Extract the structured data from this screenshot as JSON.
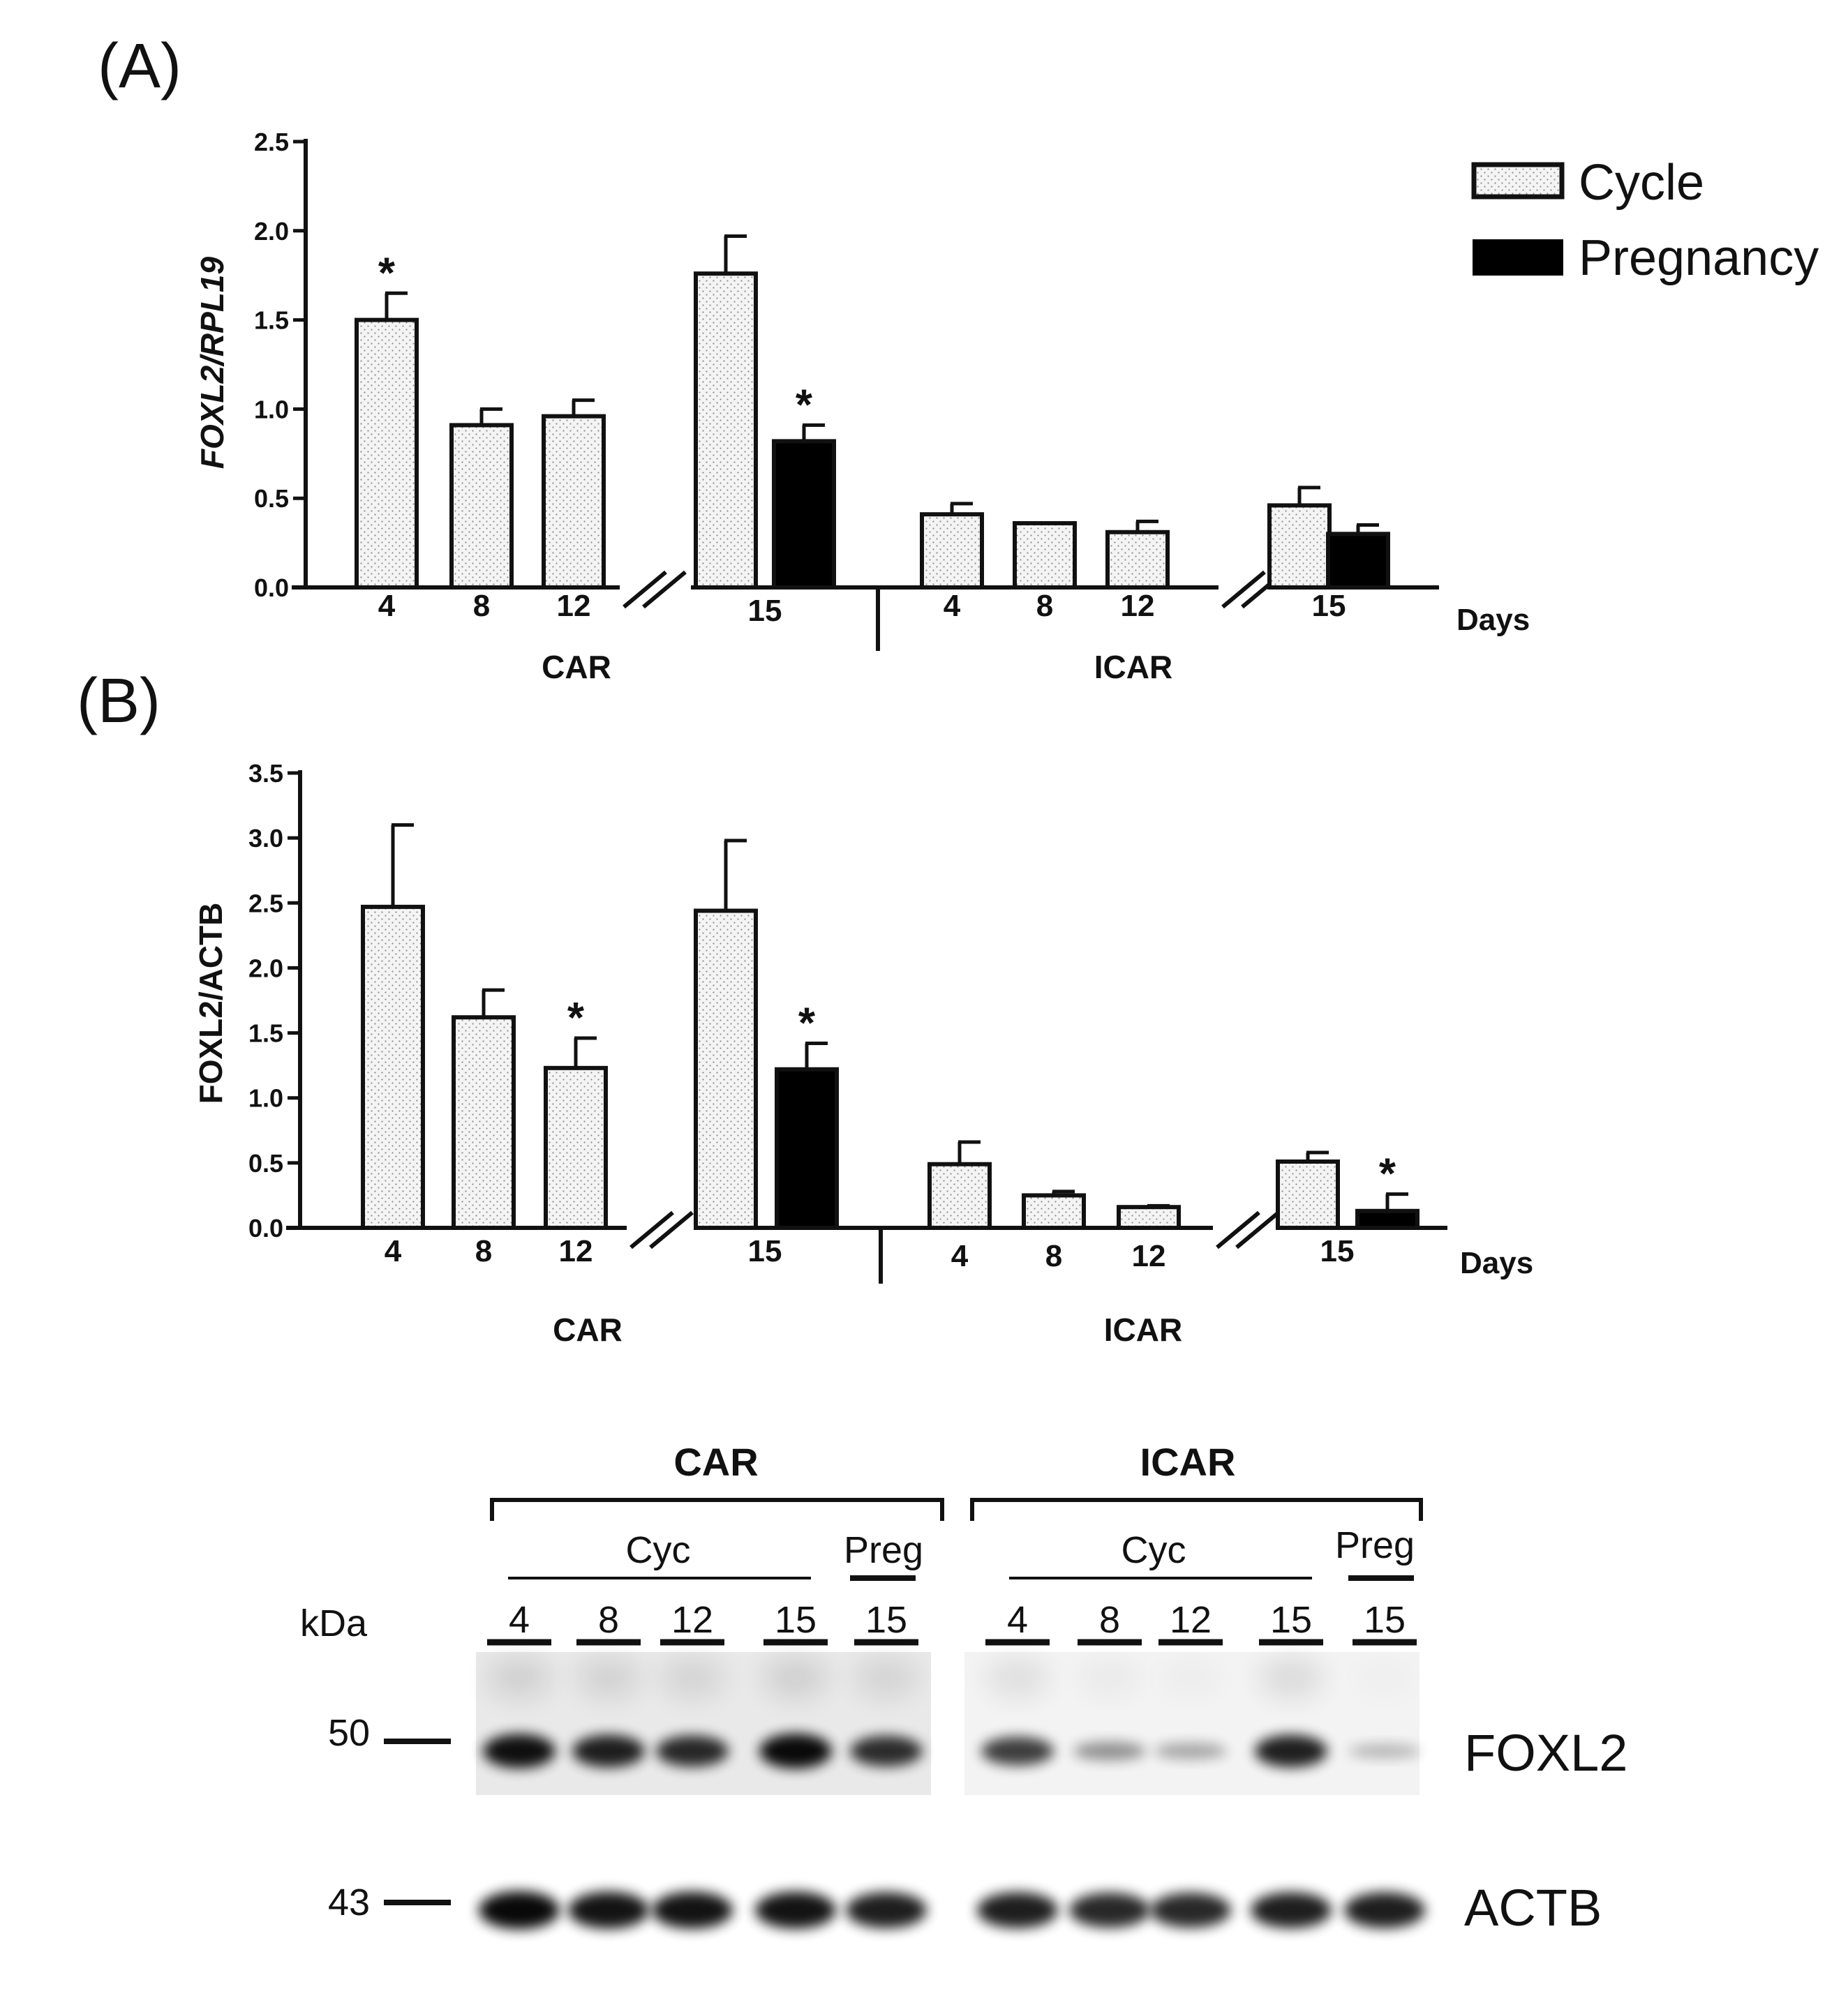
{
  "chart_data": [
    {
      "type": "bar",
      "panel_label": "(A)",
      "ylabel": "FOXL2/RPL19",
      "ylim": [
        0,
        2.5
      ],
      "yticks": [
        "0.0",
        "0.5",
        "1.0",
        "1.5",
        "2.0",
        "2.5"
      ],
      "x_unit_label": "Days",
      "groups": [
        "CAR",
        "ICAR"
      ],
      "categories": [
        "4",
        "8",
        "12",
        "15",
        "4",
        "8",
        "12",
        "15"
      ],
      "series": [
        {
          "name": "Cycle",
          "values": [
            1.5,
            0.91,
            0.96,
            1.76,
            0.41,
            0.36,
            0.31,
            0.46
          ],
          "errors": [
            0.15,
            0.09,
            0.09,
            0.21,
            0.06,
            0.0,
            0.06,
            0.1
          ],
          "significant": [
            true,
            false,
            false,
            false,
            false,
            false,
            false,
            false
          ]
        },
        {
          "name": "Pregnancy",
          "values": [
            null,
            null,
            null,
            0.82,
            null,
            null,
            null,
            0.3
          ],
          "errors": [
            null,
            null,
            null,
            0.09,
            null,
            null,
            null,
            0.05
          ],
          "significant": [
            false,
            false,
            false,
            true,
            false,
            false,
            false,
            false
          ]
        }
      ],
      "significance_marker": "*",
      "legend": {
        "position": "top-right",
        "items": [
          "Cycle",
          "Pregnancy"
        ]
      }
    },
    {
      "type": "bar",
      "panel_label": "(B)",
      "ylabel": "FOXL2/ACTB",
      "ylim": [
        0,
        3.5
      ],
      "yticks": [
        "0.0",
        "0.5",
        "1.0",
        "1.5",
        "2.0",
        "2.5",
        "3.0",
        "3.5"
      ],
      "x_unit_label": "Days",
      "groups": [
        "CAR",
        "ICAR"
      ],
      "categories": [
        "4",
        "8",
        "12",
        "15",
        "4",
        "8",
        "12",
        "15"
      ],
      "series": [
        {
          "name": "Cycle",
          "values": [
            2.47,
            1.62,
            1.23,
            2.44,
            0.49,
            0.25,
            0.16,
            0.51
          ],
          "errors": [
            0.63,
            0.21,
            0.23,
            0.54,
            0.17,
            0.03,
            0.01,
            0.07
          ],
          "significant": [
            false,
            false,
            true,
            false,
            false,
            false,
            false,
            false
          ]
        },
        {
          "name": "Pregnancy",
          "values": [
            null,
            null,
            null,
            1.22,
            null,
            null,
            null,
            0.13
          ],
          "errors": [
            null,
            null,
            null,
            0.2,
            null,
            null,
            null,
            0.13
          ],
          "significant": [
            false,
            false,
            false,
            true,
            false,
            false,
            false,
            true
          ]
        }
      ],
      "significance_marker": "*"
    }
  ],
  "blot": {
    "groups": [
      "CAR",
      "ICAR"
    ],
    "conditions": {
      "cyc": "Cyc",
      "preg": "Preg"
    },
    "lanes": [
      "4",
      "8",
      "12",
      "15",
      "15"
    ],
    "kda_label": "kDa",
    "markers": [
      "50",
      "43"
    ],
    "bands": [
      "FOXL2",
      "ACTB"
    ],
    "foxl2_intensity": [
      [
        0.92,
        0.85,
        0.8,
        0.95,
        0.78
      ],
      [
        0.7,
        0.3,
        0.2,
        0.85,
        0.12
      ]
    ],
    "actb_intensity": [
      [
        0.95,
        0.9,
        0.9,
        0.9,
        0.85
      ],
      [
        0.85,
        0.8,
        0.8,
        0.85,
        0.85
      ]
    ]
  }
}
